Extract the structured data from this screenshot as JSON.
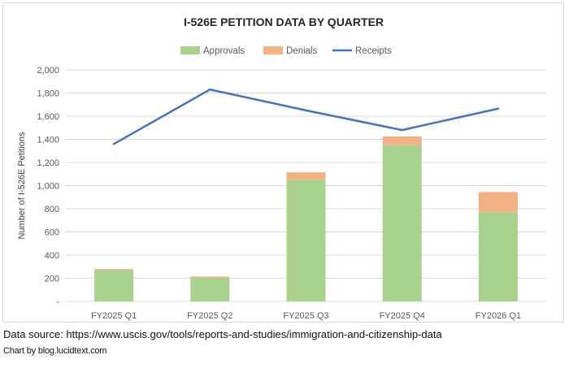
{
  "chart_data": {
    "type": "bar",
    "title": "I-526E PETITION DATA BY QUARTER",
    "ylabel": "Number of I-526E Petitions",
    "xlabel": "",
    "ylim": [
      0,
      2000
    ],
    "yticks": [
      0,
      200,
      400,
      600,
      800,
      1000,
      1200,
      1400,
      1600,
      1800,
      2000
    ],
    "ytick_labels": [
      "-",
      "200",
      "400",
      "600",
      "800",
      "1,000",
      "1,200",
      "1,400",
      "1,600",
      "1,800",
      "2,000"
    ],
    "grid": true,
    "legend_position": "top-center",
    "categories": [
      "FY2025 Q1",
      "FY2025 Q2",
      "FY2025 Q3",
      "FY2025 Q4",
      "FY2026 Q1"
    ],
    "series": [
      {
        "name": "Approvals",
        "type": "bar",
        "stacked": true,
        "color": "#a9d18e",
        "values": [
          270,
          205,
          1050,
          1350,
          770
        ]
      },
      {
        "name": "Denials",
        "type": "bar",
        "stacked": true,
        "color": "#f4b183",
        "values": [
          10,
          10,
          65,
          75,
          175
        ]
      },
      {
        "name": "Receipts",
        "type": "line",
        "color": "#4472c4",
        "values": [
          1360,
          1830,
          1650,
          1480,
          1665
        ]
      }
    ]
  },
  "footer": {
    "source": "Data source: https://www.uscis.gov/tools/reports-and-studies/immigration-and-citizenship-data",
    "credit": "Chart by blog.lucidtext.com"
  }
}
